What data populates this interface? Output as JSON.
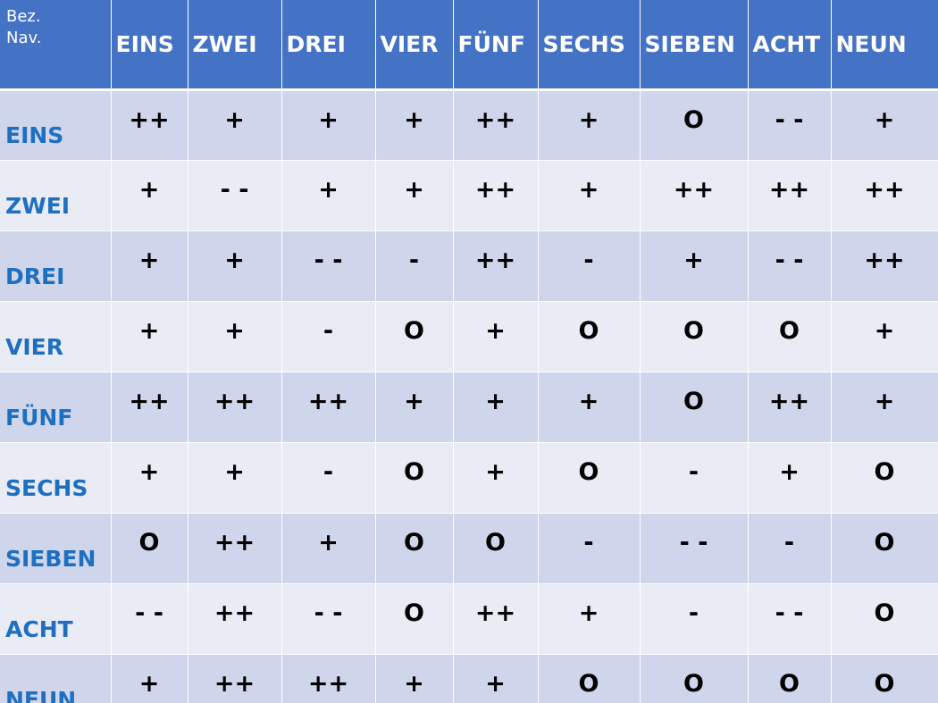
{
  "table": {
    "corner": {
      "line1": "Bez.",
      "line2": "Nav."
    },
    "columns": [
      "EINS",
      "ZWEI",
      "DREI",
      "VIER",
      "FÜNF",
      "SECHS",
      "SIEBEN",
      "ACHT",
      "NEUN"
    ],
    "rows": [
      {
        "label": "EINS",
        "cells": [
          "++",
          "+",
          "+",
          "+",
          "++",
          "+",
          "O",
          "- -",
          "+"
        ]
      },
      {
        "label": "ZWEI",
        "cells": [
          "+",
          "- -",
          "+",
          "+",
          "++",
          "+",
          "++",
          "++",
          "++"
        ]
      },
      {
        "label": "DREI",
        "cells": [
          "+",
          "+",
          "- -",
          "-",
          "++",
          "-",
          "+",
          "- -",
          "++"
        ]
      },
      {
        "label": "VIER",
        "cells": [
          "+",
          "+",
          "-",
          "O",
          "+",
          "O",
          "O",
          "O",
          "+"
        ]
      },
      {
        "label": "FÜNF",
        "cells": [
          "++",
          "++",
          "++",
          "+",
          "+",
          "+",
          "O",
          "++",
          "+"
        ]
      },
      {
        "label": "SECHS",
        "cells": [
          "+",
          "+",
          "-",
          "O",
          "+",
          "O",
          "-",
          "+",
          "O"
        ]
      },
      {
        "label": "SIEBEN",
        "cells": [
          "O",
          "++",
          "+",
          "O",
          "O",
          "-",
          "- -",
          "-",
          "O"
        ]
      },
      {
        "label": "ACHT",
        "cells": [
          "- -",
          "++",
          "- -",
          "O",
          "++",
          "+",
          "-",
          "- -",
          "O"
        ]
      },
      {
        "label": "NEUN",
        "cells": [
          "+",
          "++",
          "++",
          "+",
          "+",
          "O",
          "O",
          "O",
          "O"
        ]
      }
    ]
  },
  "colors": {
    "header_bg": "#4472c4",
    "row_odd_bg": "#cfd5ea",
    "row_even_bg": "#e9ebf5",
    "row_label": "#1f6fc1"
  }
}
